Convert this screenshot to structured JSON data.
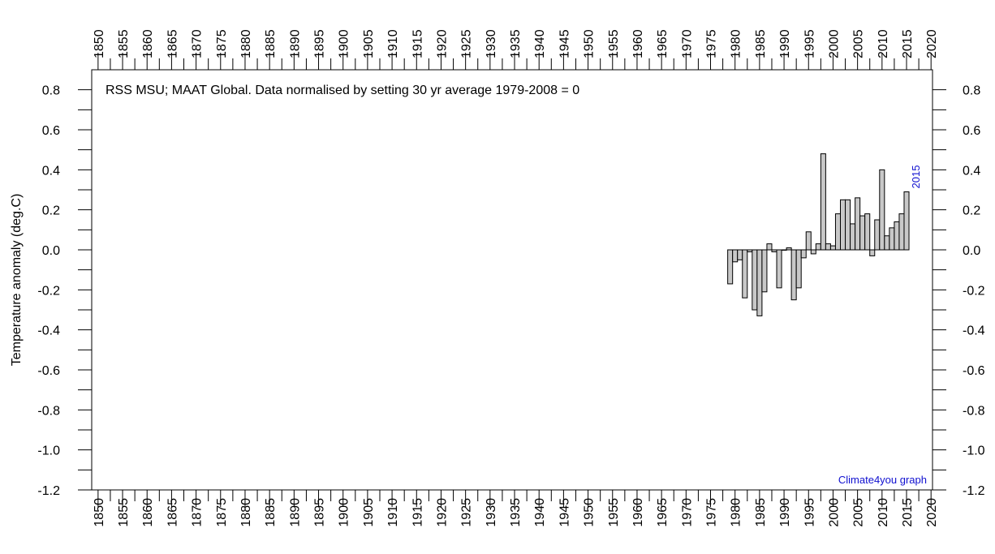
{
  "chart_data": {
    "type": "bar",
    "title": "RSS MSU; MAAT Global. Data normalised by setting 30 yr average 1979-2008 = 0",
    "ylabel": "Temperature anomaly (deg.C)",
    "annotations": [
      "Climate4you graph",
      "2015"
    ],
    "x": [
      1979,
      1980,
      1981,
      1982,
      1983,
      1984,
      1985,
      1986,
      1987,
      1988,
      1989,
      1990,
      1991,
      1992,
      1993,
      1994,
      1995,
      1996,
      1997,
      1998,
      1999,
      2000,
      2001,
      2002,
      2003,
      2004,
      2005,
      2006,
      2007,
      2008,
      2009,
      2010,
      2011,
      2012,
      2013,
      2014,
      2015
    ],
    "values": [
      -0.17,
      -0.06,
      -0.05,
      -0.24,
      -0.01,
      -0.3,
      -0.33,
      -0.21,
      0.03,
      -0.01,
      -0.19,
      0.0,
      0.01,
      -0.25,
      -0.19,
      -0.04,
      0.09,
      -0.02,
      0.03,
      0.48,
      0.03,
      0.02,
      0.18,
      0.25,
      0.25,
      0.13,
      0.26,
      0.17,
      0.18,
      -0.03,
      0.15,
      0.4,
      0.07,
      0.11,
      0.14,
      0.18,
      0.29
    ],
    "color": "#c8c8c8",
    "xlim": [
      1848.7,
      2020.3
    ],
    "xticks": [
      1850,
      1855,
      1860,
      1865,
      1870,
      1875,
      1880,
      1885,
      1890,
      1895,
      1900,
      1905,
      1910,
      1915,
      1920,
      1925,
      1930,
      1935,
      1940,
      1945,
      1950,
      1955,
      1960,
      1965,
      1970,
      1975,
      1980,
      1985,
      1990,
      1995,
      2000,
      2005,
      2010,
      2015,
      2020
    ],
    "ylim": [
      -1.2,
      0.9
    ],
    "yticks": [
      -1.2,
      {
        "value": -1.0,
        "label": "-1.0"
      },
      -0.8,
      -0.6,
      -0.4,
      -0.2,
      {
        "value": 0.0,
        "label": "0.0"
      },
      0.2,
      0.4,
      0.6,
      0.8
    ]
  }
}
